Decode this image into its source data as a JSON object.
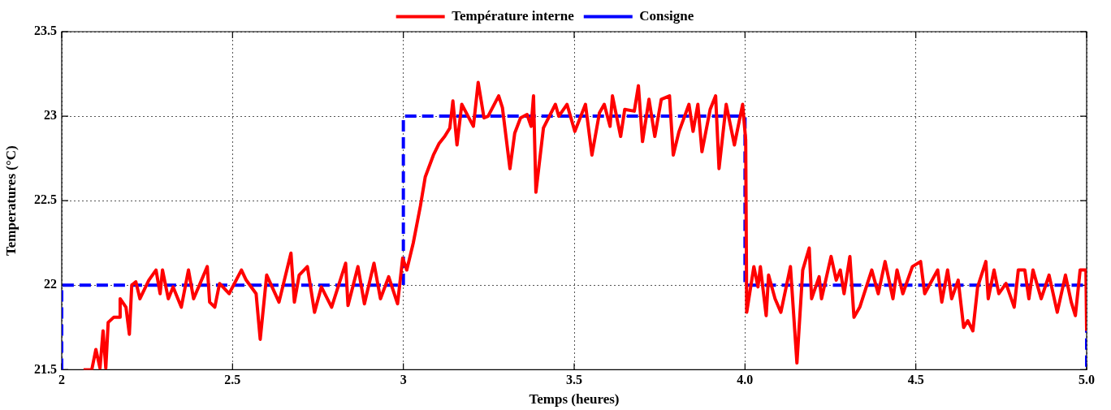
{
  "chart_data": {
    "type": "line",
    "xlabel": "Temps (heures)",
    "ylabel": "Temperatures (°C)",
    "xlim": [
      2,
      5
    ],
    "xticks": [
      2,
      2.5,
      3,
      3.5,
      {
        "value": 4,
        "label": "4.0"
      },
      {
        "value": 4.5,
        "label": "4.5"
      },
      {
        "value": 5,
        "label": "5.0"
      }
    ],
    "ylim": [
      21.5,
      23.5
    ],
    "yticks": [
      21.5,
      22,
      22.5,
      23,
      23.5
    ],
    "grid": true,
    "legend": "top",
    "marker": "none",
    "series": [
      {
        "name": "Température interne",
        "color": "#ff0000",
        "line_style": "solid",
        "x": [
          2.064,
          2.088,
          2.1,
          2.112,
          2.121,
          2.129,
          2.136,
          2.152,
          2.169,
          2.171,
          2.188,
          2.198,
          2.205,
          2.217,
          2.229,
          2.255,
          2.276,
          2.288,
          2.295,
          2.312,
          2.326,
          2.35,
          2.371,
          2.386,
          2.426,
          2.433,
          2.448,
          2.462,
          2.49,
          2.526,
          2.54,
          2.569,
          2.581,
          2.6,
          2.636,
          2.671,
          2.681,
          2.695,
          2.719,
          2.74,
          2.76,
          2.79,
          2.831,
          2.838,
          2.867,
          2.886,
          2.914,
          2.933,
          2.957,
          2.983,
          2.998,
          3.01,
          3.029,
          3.05,
          3.064,
          3.088,
          3.105,
          3.121,
          3.136,
          3.145,
          3.157,
          3.171,
          3.205,
          3.219,
          3.236,
          3.248,
          3.279,
          3.29,
          3.312,
          3.326,
          3.343,
          3.362,
          3.374,
          3.381,
          3.388,
          3.41,
          3.445,
          3.455,
          3.479,
          3.502,
          3.533,
          3.552,
          3.574,
          3.588,
          3.605,
          3.612,
          3.636,
          3.648,
          3.676,
          3.688,
          3.7,
          3.719,
          3.736,
          3.755,
          3.779,
          3.79,
          3.807,
          3.836,
          3.848,
          3.862,
          3.874,
          3.898,
          3.914,
          3.924,
          3.945,
          3.969,
          3.993,
          4.002,
          4.005,
          4.026,
          4.038,
          4.045,
          4.062,
          4.069,
          4.088,
          4.105,
          4.133,
          4.152,
          4.169,
          4.188,
          4.195,
          4.217,
          4.224,
          4.252,
          4.267,
          4.279,
          4.29,
          4.307,
          4.319,
          4.336,
          4.371,
          4.39,
          4.41,
          4.433,
          4.445,
          4.462,
          4.49,
          4.514,
          4.526,
          4.564,
          4.576,
          4.593,
          4.605,
          4.624,
          4.64,
          4.652,
          4.667,
          4.681,
          4.705,
          4.712,
          4.729,
          4.743,
          4.764,
          4.788,
          4.8,
          4.819,
          4.831,
          4.843,
          4.867,
          4.89,
          4.914,
          4.938,
          4.955,
          4.967,
          4.981,
          4.998,
          5.0
        ],
        "values": [
          21.5,
          21.5,
          21.62,
          21.51,
          21.73,
          21.51,
          21.78,
          21.81,
          21.81,
          21.92,
          21.87,
          21.71,
          22.0,
          22.02,
          21.92,
          22.03,
          22.09,
          21.95,
          22.09,
          21.92,
          21.99,
          21.87,
          22.09,
          21.92,
          22.11,
          21.9,
          21.87,
          22.01,
          21.95,
          22.09,
          22.03,
          21.95,
          21.68,
          22.06,
          21.9,
          22.19,
          21.9,
          22.06,
          22.11,
          21.84,
          21.99,
          21.87,
          22.13,
          21.88,
          22.11,
          21.89,
          22.13,
          21.92,
          22.05,
          21.89,
          22.16,
          22.09,
          22.25,
          22.47,
          22.64,
          22.77,
          22.84,
          22.88,
          22.93,
          23.09,
          22.83,
          23.07,
          22.94,
          23.2,
          22.99,
          23.0,
          23.12,
          23.05,
          22.69,
          22.9,
          22.99,
          23.01,
          22.94,
          23.12,
          22.55,
          22.93,
          23.07,
          23.0,
          23.07,
          22.91,
          23.07,
          22.77,
          23.02,
          23.07,
          22.94,
          23.12,
          22.88,
          23.04,
          23.03,
          23.18,
          22.85,
          23.1,
          22.88,
          23.1,
          23.12,
          22.77,
          22.91,
          23.07,
          22.91,
          23.07,
          22.79,
          23.04,
          23.12,
          22.69,
          23.07,
          22.83,
          23.07,
          22.86,
          21.84,
          22.11,
          21.99,
          22.11,
          21.82,
          22.06,
          21.92,
          21.84,
          22.11,
          21.54,
          22.09,
          22.22,
          21.92,
          22.05,
          21.92,
          22.17,
          22.03,
          22.09,
          21.95,
          22.17,
          21.81,
          21.87,
          22.09,
          21.95,
          22.14,
          21.92,
          22.09,
          21.95,
          22.11,
          22.14,
          21.95,
          22.09,
          21.9,
          22.09,
          21.92,
          22.03,
          21.75,
          21.79,
          21.73,
          21.99,
          22.14,
          21.92,
          22.09,
          21.95,
          22.01,
          21.87,
          22.09,
          22.09,
          21.92,
          22.09,
          21.92,
          22.06,
          21.84,
          22.06,
          21.9,
          21.82,
          22.09,
          22.09,
          21.73
        ]
      },
      {
        "name": "Consigne",
        "color": "#0000ff",
        "line_style": "dashed",
        "x": [
          2,
          2,
          3,
          3,
          4,
          4,
          5,
          5
        ],
        "values": [
          21.5,
          22,
          22,
          23,
          23,
          22,
          22,
          21.5
        ]
      }
    ]
  }
}
